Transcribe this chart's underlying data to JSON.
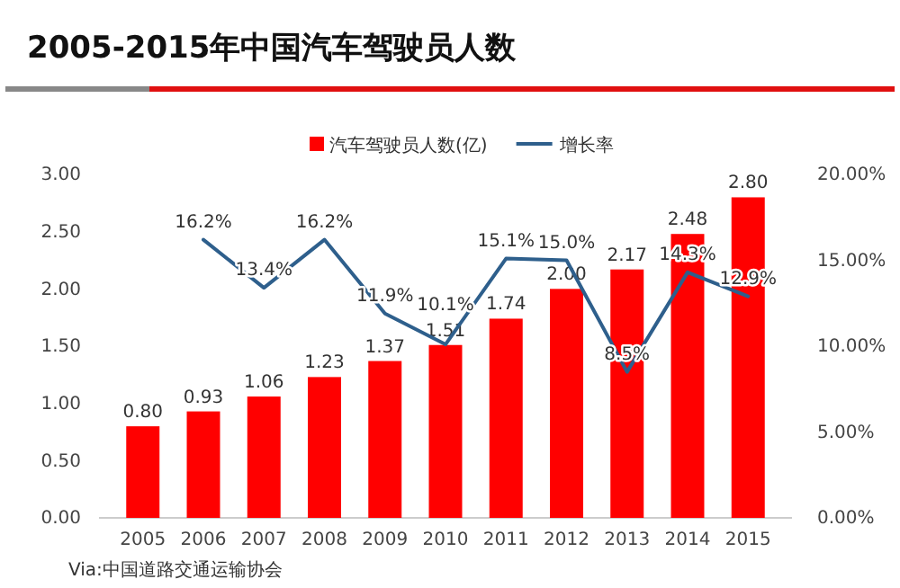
{
  "chart_data": {
    "type": "bar",
    "title": "2005-2015年中国汽车驾驶员人数",
    "categories": [
      "2005",
      "2006",
      "2007",
      "2008",
      "2009",
      "2010",
      "2011",
      "2012",
      "2013",
      "2014",
      "2015"
    ],
    "series": [
      {
        "name": "汽车驾驶员人数(亿)",
        "color": "#ff0000",
        "values": [
          0.8,
          0.93,
          1.06,
          1.23,
          1.37,
          1.51,
          1.74,
          2.0,
          2.17,
          2.48,
          2.8
        ],
        "value_labels": [
          "0.80",
          "0.93",
          "1.06",
          "1.23",
          "1.37",
          "1.51",
          "1.74",
          "2.00",
          "2.17",
          "2.48",
          "2.80"
        ]
      },
      {
        "name": "增长率",
        "type": "line",
        "axis": "y2",
        "color": "#2e5f8c",
        "values": [
          null,
          16.2,
          13.4,
          16.2,
          11.9,
          10.1,
          15.1,
          15.0,
          8.5,
          14.3,
          12.9
        ],
        "value_labels": [
          null,
          "16.2%",
          "13.4%",
          "16.2%",
          "11.9%",
          "10.1%",
          "15.1%",
          "15.0%",
          "8.5%",
          "14.3%",
          "12.9%"
        ]
      }
    ],
    "ylim": [
      0,
      3
    ],
    "yticks": [
      {
        "value": 0,
        "label": "0.00"
      },
      {
        "value": 0.5,
        "label": "0.50"
      },
      {
        "value": 1,
        "label": "1.00"
      },
      {
        "value": 1.5,
        "label": "1.50"
      },
      {
        "value": 2,
        "label": "2.00"
      },
      {
        "value": 2.5,
        "label": "2.50"
      },
      {
        "value": 3,
        "label": "3.00"
      }
    ],
    "y2lim": [
      0,
      20
    ],
    "y2ticks": [
      {
        "value": 0,
        "label": "0.00%"
      },
      {
        "value": 5,
        "label": "5.00%"
      },
      {
        "value": 10,
        "label": "10.00%"
      },
      {
        "value": 15,
        "label": "15.00%"
      },
      {
        "value": 20,
        "label": "20.00%"
      }
    ],
    "grid": false,
    "legend": "top",
    "marker": "none",
    "line_style": "solid",
    "annotations": [
      "Via:中国道路交通运输协会"
    ]
  }
}
